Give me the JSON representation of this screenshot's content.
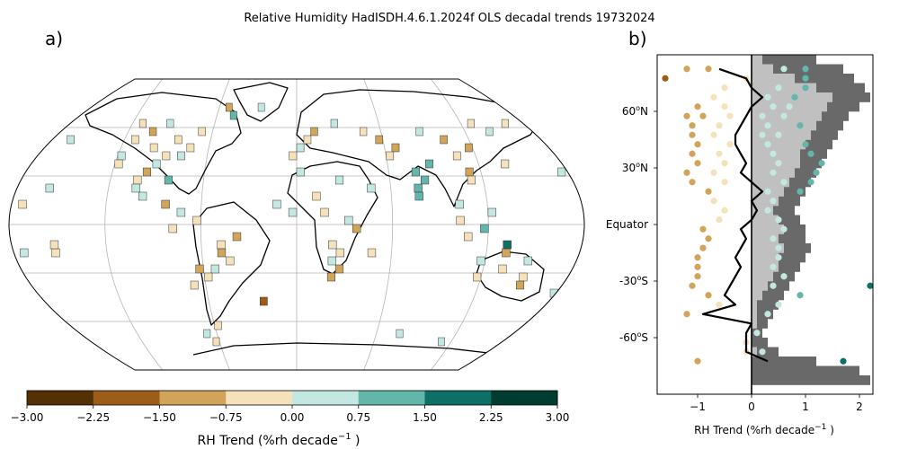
{
  "title": "Relative Humidity HadISDH.4.6.1.2024f OLS decadal trends 19732024",
  "panels": {
    "a": "a)",
    "b": "b)"
  },
  "colorbar": {
    "label_main": "RH Trend (%rh decade",
    "label_exp": "−1",
    "label_tail": " )",
    "ticks": [
      "−3.00",
      "−2.25",
      "−1.50",
      "−0.75",
      "0.00",
      "0.75",
      "1.50",
      "2.25",
      "3.00"
    ],
    "colors": [
      "#543005",
      "#9c5d19",
      "#d1a45a",
      "#f5e2bb",
      "#c3e8e2",
      "#62b6aa",
      "#0e6f66",
      "#003c30"
    ]
  },
  "chart_data": [
    {
      "type": "heatmap",
      "panel": "a)",
      "projection": "Robinson (world map)",
      "grid": true,
      "color_range": [
        -3.0,
        3.0
      ],
      "cells_lat_lon_trend": [
        [
          72.5,
          -52.5,
          -1.2
        ],
        [
          67.5,
          -47.5,
          1.0
        ],
        [
          72.5,
          -27.5,
          0.4
        ],
        [
          62.5,
          -112.5,
          -0.4
        ],
        [
          57.5,
          -102.5,
          -0.9
        ],
        [
          52.5,
          -112.5,
          -0.6
        ],
        [
          47.5,
          -97.5,
          -0.3
        ],
        [
          42.5,
          -87.5,
          -0.5
        ],
        [
          37.5,
          -92.5,
          0.3
        ],
        [
          32.5,
          -97.5,
          -1.0
        ],
        [
          27.5,
          -102.5,
          -0.5
        ],
        [
          22.5,
          -102.5,
          0.5
        ],
        [
          17.5,
          -97.5,
          0.4
        ],
        [
          42.5,
          -117.5,
          0.5
        ],
        [
          37.5,
          -117.5,
          -0.6
        ],
        [
          47.5,
          -72.5,
          -0.5
        ],
        [
          42.5,
          -77.5,
          0.4
        ],
        [
          52.5,
          -82.5,
          -0.3
        ],
        [
          57.5,
          -67.5,
          -0.6
        ],
        [
          62.5,
          -92.5,
          0.2
        ],
        [
          27.5,
          -82.5,
          1.4
        ],
        [
          62.5,
          27.5,
          0.4
        ],
        [
          57.5,
          12.5,
          -0.9
        ],
        [
          52.5,
          7.5,
          -0.5
        ],
        [
          47.5,
          2.5,
          0.3
        ],
        [
          42.5,
          -2.5,
          -0.4
        ],
        [
          57.5,
          47.5,
          -0.4
        ],
        [
          52.5,
          57.5,
          -0.9
        ],
        [
          47.5,
          67.5,
          -1.2
        ],
        [
          42.5,
          62.5,
          -0.7
        ],
        [
          57.5,
          87.5,
          0.3
        ],
        [
          52.5,
          102.5,
          -1.0
        ],
        [
          47.5,
          117.5,
          -1.3
        ],
        [
          42.5,
          107.5,
          -0.6
        ],
        [
          62.5,
          127.5,
          -0.3
        ],
        [
          37.5,
          87.5,
          1.0
        ],
        [
          32.5,
          77.5,
          0.9
        ],
        [
          27.5,
          82.5,
          1.3
        ],
        [
          22.5,
          77.5,
          0.8
        ],
        [
          17.5,
          77.5,
          1.1
        ],
        [
          32.5,
          112.5,
          -0.8
        ],
        [
          27.5,
          112.5,
          -0.5
        ],
        [
          37.5,
          137.5,
          -0.4
        ],
        [
          57.5,
          137.5,
          0.3
        ],
        [
          62.5,
          152.5,
          -0.5
        ],
        [
          22.5,
          47.5,
          0.4
        ],
        [
          27.5,
          27.5,
          0.6
        ],
        [
          32.5,
          2.5,
          0.3
        ],
        [
          17.5,
          12.5,
          -0.2
        ],
        [
          12.5,
          -12.5,
          0.5
        ],
        [
          7.5,
          -2.5,
          0.5
        ],
        [
          7.5,
          17.5,
          -0.5
        ],
        [
          2.5,
          32.5,
          0.3
        ],
        [
          -2.5,
          37.5,
          -1.0
        ],
        [
          -17.5,
          27.5,
          -0.4
        ],
        [
          -22.5,
          22.5,
          0.6
        ],
        [
          -27.5,
          27.5,
          -0.8
        ],
        [
          -32.5,
          22.5,
          -1.2
        ],
        [
          -12.5,
          22.5,
          -0.5
        ],
        [
          -17.5,
          47.5,
          -0.5
        ],
        [
          -7.5,
          -37.5,
          -0.8
        ],
        [
          -12.5,
          -47.5,
          -0.4
        ],
        [
          -17.5,
          -47.5,
          -1.3
        ],
        [
          -22.5,
          -42.5,
          -0.6
        ],
        [
          -27.5,
          -52.5,
          0.4
        ],
        [
          -32.5,
          -57.5,
          -0.6
        ],
        [
          -27.5,
          -62.5,
          -1.0
        ],
        [
          -37.5,
          -67.5,
          -0.5
        ],
        [
          2.5,
          -62.5,
          -0.5
        ],
        [
          -2.5,
          -77.5,
          -0.5
        ],
        [
          7.5,
          -72.5,
          0.6
        ],
        [
          12.5,
          -82.5,
          -1.3
        ],
        [
          -22.5,
          117.5,
          0.5
        ],
        [
          -27.5,
          132.5,
          -0.6
        ],
        [
          -32.5,
          117.5,
          -0.4
        ],
        [
          -32.5,
          147.5,
          -0.7
        ],
        [
          -22.5,
          147.5,
          0.6
        ],
        [
          -37.5,
          147.5,
          -1.5
        ],
        [
          -17.5,
          132.5,
          -0.9
        ],
        [
          -42.5,
          172.5,
          0.4
        ],
        [
          -12.5,
          132.5,
          2.0
        ],
        [
          2.5,
          102.5,
          -0.6
        ],
        [
          12.5,
          102.5,
          0.3
        ],
        [
          7.5,
          122.5,
          0.4
        ],
        [
          -2.5,
          117.5,
          1.3
        ],
        [
          -7.5,
          107.5,
          -0.5
        ],
        [
          -17.5,
          -152.5,
          -0.4
        ],
        [
          -17.5,
          -172.5,
          0.4
        ],
        [
          22.5,
          -157.5,
          0.7
        ],
        [
          12.5,
          -172.5,
          -0.5
        ],
        [
          -72.5,
          -62.5,
          -0.5
        ],
        [
          -67.5,
          77.5,
          0.5
        ],
        [
          -72.5,
          112.5,
          0.3
        ],
        [
          -77.5,
          162.5,
          -0.4
        ],
        [
          -62.5,
          -57.5,
          -0.4
        ],
        [
          -67.5,
          -67.5,
          0.6
        ],
        [
          52.5,
          -157.5,
          0.4
        ],
        [
          -12.5,
          -152.5,
          -0.6
        ],
        [
          32.5,
          172.5,
          0.6
        ],
        [
          -47.5,
          -22.5,
          -1.6
        ]
      ]
    },
    {
      "type": "scatter",
      "panel": "b)",
      "xlabel_main": "RH Trend (%rh decade",
      "xlabel_exp": "−1",
      "xlabel_tail": " )",
      "xlim": [
        -1.75,
        2.25
      ],
      "ylim": [
        -90,
        90
      ],
      "xticks": [
        -1,
        0,
        1,
        2
      ],
      "ytick_labels": [
        {
          "lat": 60,
          "main": "60",
          "sup": "o",
          "end": "N"
        },
        {
          "lat": 30,
          "main": "30",
          "sup": "o",
          "end": "N"
        },
        {
          "lat": 0,
          "main": "Equator",
          "sup": "",
          "end": ""
        },
        {
          "lat": -30,
          "main": "-30",
          "sup": "o",
          "end": "S"
        },
        {
          "lat": -60,
          "main": "-60",
          "sup": "o",
          "end": "S"
        }
      ],
      "zonal_mean_trend": [
        [
          82.5,
          -0.6
        ],
        [
          77.5,
          -0.1
        ],
        [
          72.5,
          0.0
        ],
        [
          67.5,
          0.2
        ],
        [
          62.5,
          0.0
        ],
        [
          57.5,
          -0.1
        ],
        [
          52.5,
          -0.2
        ],
        [
          47.5,
          -0.3
        ],
        [
          42.5,
          -0.3
        ],
        [
          37.5,
          -0.2
        ],
        [
          32.5,
          -0.1
        ],
        [
          27.5,
          -0.2
        ],
        [
          22.5,
          0.0
        ],
        [
          17.5,
          0.2
        ],
        [
          12.5,
          0.0
        ],
        [
          7.5,
          0.1
        ],
        [
          2.5,
          0.0
        ],
        [
          -2.5,
          -0.2
        ],
        [
          -7.5,
          -0.1
        ],
        [
          -12.5,
          -0.2
        ],
        [
          -17.5,
          -0.3
        ],
        [
          -22.5,
          -0.2
        ],
        [
          -27.5,
          -0.3
        ],
        [
          -32.5,
          -0.4
        ],
        [
          -37.5,
          -0.5
        ],
        [
          -42.5,
          -0.3
        ],
        [
          -47.5,
          -0.9
        ],
        [
          -52.5,
          0.0
        ],
        [
          -57.5,
          -0.1
        ],
        [
          -62.5,
          -0.1
        ],
        [
          -67.5,
          -0.1
        ],
        [
          -72.5,
          0.3
        ]
      ],
      "shaded_profile_dark": [
        [
          87.5,
          1.2
        ],
        [
          82.5,
          1.7
        ],
        [
          77.5,
          1.9
        ],
        [
          72.5,
          2.1
        ],
        [
          67.5,
          2.2
        ],
        [
          62.5,
          2.0
        ],
        [
          57.5,
          1.8
        ],
        [
          52.5,
          1.7
        ],
        [
          47.5,
          1.6
        ],
        [
          42.5,
          1.5
        ],
        [
          37.5,
          1.4
        ],
        [
          32.5,
          1.3
        ],
        [
          27.5,
          1.2
        ],
        [
          22.5,
          1.1
        ],
        [
          17.5,
          1.0
        ],
        [
          12.5,
          0.9
        ],
        [
          7.5,
          0.8
        ],
        [
          2.5,
          0.9
        ],
        [
          -2.5,
          1.0
        ],
        [
          -7.5,
          1.0
        ],
        [
          -12.5,
          1.1
        ],
        [
          -17.5,
          1.0
        ],
        [
          -22.5,
          0.9
        ],
        [
          -27.5,
          0.8
        ],
        [
          -32.5,
          0.7
        ],
        [
          -37.5,
          0.6
        ],
        [
          -42.5,
          0.5
        ],
        [
          -47.5,
          0.4
        ],
        [
          -52.5,
          0.3
        ],
        [
          -57.5,
          0.2
        ],
        [
          -62.5,
          0.3
        ],
        [
          -67.5,
          0.5
        ],
        [
          -72.5,
          1.2
        ],
        [
          -77.5,
          2.0
        ],
        [
          -82.5,
          2.2
        ]
      ],
      "shaded_profile_light": [
        [
          87.5,
          0.2
        ],
        [
          82.5,
          0.4
        ],
        [
          77.5,
          0.8
        ],
        [
          72.5,
          1.2
        ],
        [
          67.5,
          1.5
        ],
        [
          62.5,
          1.4
        ],
        [
          57.5,
          1.3
        ],
        [
          52.5,
          1.2
        ],
        [
          47.5,
          1.1
        ],
        [
          42.5,
          1.0
        ],
        [
          37.5,
          0.9
        ],
        [
          32.5,
          0.9
        ],
        [
          27.5,
          0.8
        ],
        [
          22.5,
          0.7
        ],
        [
          17.5,
          0.6
        ],
        [
          12.5,
          0.5
        ],
        [
          7.5,
          0.4
        ],
        [
          2.5,
          0.5
        ],
        [
          -2.5,
          0.6
        ],
        [
          -7.5,
          0.5
        ],
        [
          -12.5,
          0.6
        ],
        [
          -17.5,
          0.5
        ],
        [
          -22.5,
          0.5
        ],
        [
          -27.5,
          0.4
        ],
        [
          -32.5,
          0.3
        ],
        [
          -37.5,
          0.2
        ],
        [
          -42.5,
          0.1
        ],
        [
          -47.5,
          0.1
        ],
        [
          -52.5,
          0.1
        ],
        [
          -57.5,
          0.0
        ],
        [
          -62.5,
          0.0
        ],
        [
          -67.5,
          0.1
        ],
        [
          -72.5,
          0.0
        ]
      ],
      "points_lat_trend": [
        [
          82.5,
          -1.2
        ],
        [
          82.5,
          -0.8
        ],
        [
          82.5,
          0.6
        ],
        [
          82.5,
          1.0
        ],
        [
          77.5,
          -1.6
        ],
        [
          77.5,
          1.0
        ],
        [
          77.5,
          -0.1
        ],
        [
          72.5,
          -0.5
        ],
        [
          72.5,
          0.5
        ],
        [
          72.5,
          1.0
        ],
        [
          67.5,
          -0.7
        ],
        [
          67.5,
          0.3
        ],
        [
          67.5,
          0.8
        ],
        [
          62.5,
          -1.0
        ],
        [
          62.5,
          -0.5
        ],
        [
          62.5,
          0.4
        ],
        [
          62.5,
          0.7
        ],
        [
          57.5,
          -1.2
        ],
        [
          57.5,
          -0.9
        ],
        [
          57.5,
          -0.4
        ],
        [
          57.5,
          0.2
        ],
        [
          57.5,
          0.6
        ],
        [
          52.5,
          -1.1
        ],
        [
          52.5,
          -0.6
        ],
        [
          52.5,
          0.3
        ],
        [
          52.5,
          0.9
        ],
        [
          47.5,
          -1.1
        ],
        [
          47.5,
          -0.7
        ],
        [
          47.5,
          0.2
        ],
        [
          47.5,
          0.5
        ],
        [
          42.5,
          -1.0
        ],
        [
          42.5,
          -0.4
        ],
        [
          42.5,
          0.3
        ],
        [
          42.5,
          1.0
        ],
        [
          37.5,
          -1.1
        ],
        [
          37.5,
          -0.6
        ],
        [
          37.5,
          0.4
        ],
        [
          37.5,
          1.1
        ],
        [
          32.5,
          -1.0
        ],
        [
          32.5,
          -0.5
        ],
        [
          32.5,
          0.5
        ],
        [
          32.5,
          1.3
        ],
        [
          27.5,
          -1.2
        ],
        [
          27.5,
          -0.7
        ],
        [
          27.5,
          0.4
        ],
        [
          27.5,
          1.2
        ],
        [
          22.5,
          -1.1
        ],
        [
          22.5,
          -0.5
        ],
        [
          22.5,
          0.6
        ],
        [
          22.5,
          1.1
        ],
        [
          17.5,
          -0.8
        ],
        [
          17.5,
          0.3
        ],
        [
          17.5,
          0.9
        ],
        [
          12.5,
          -0.7
        ],
        [
          12.5,
          0.4
        ],
        [
          7.5,
          -0.5
        ],
        [
          7.5,
          0.3
        ],
        [
          2.5,
          -0.6
        ],
        [
          2.5,
          0.5
        ],
        [
          -2.5,
          -0.9
        ],
        [
          -2.5,
          0.6
        ],
        [
          -7.5,
          -0.8
        ],
        [
          -7.5,
          0.4
        ],
        [
          -12.5,
          -0.9
        ],
        [
          -12.5,
          0.5
        ],
        [
          -17.5,
          -1.0
        ],
        [
          -17.5,
          0.5
        ],
        [
          -22.5,
          -1.0
        ],
        [
          -22.5,
          0.4
        ],
        [
          -27.5,
          -1.0
        ],
        [
          -27.5,
          0.6
        ],
        [
          -32.5,
          -1.1
        ],
        [
          -32.5,
          0.4
        ],
        [
          -32.5,
          2.2
        ],
        [
          -37.5,
          -0.8
        ],
        [
          -37.5,
          0.9
        ],
        [
          -42.5,
          -0.6
        ],
        [
          -42.5,
          0.5
        ],
        [
          -47.5,
          -1.2
        ],
        [
          -47.5,
          0.3
        ],
        [
          -57.5,
          0.1
        ],
        [
          -62.5,
          -0.1
        ],
        [
          -67.5,
          -0.1
        ],
        [
          -72.5,
          -1.0
        ],
        [
          -72.5,
          1.7
        ],
        [
          -67.5,
          0.2
        ]
      ]
    }
  ]
}
